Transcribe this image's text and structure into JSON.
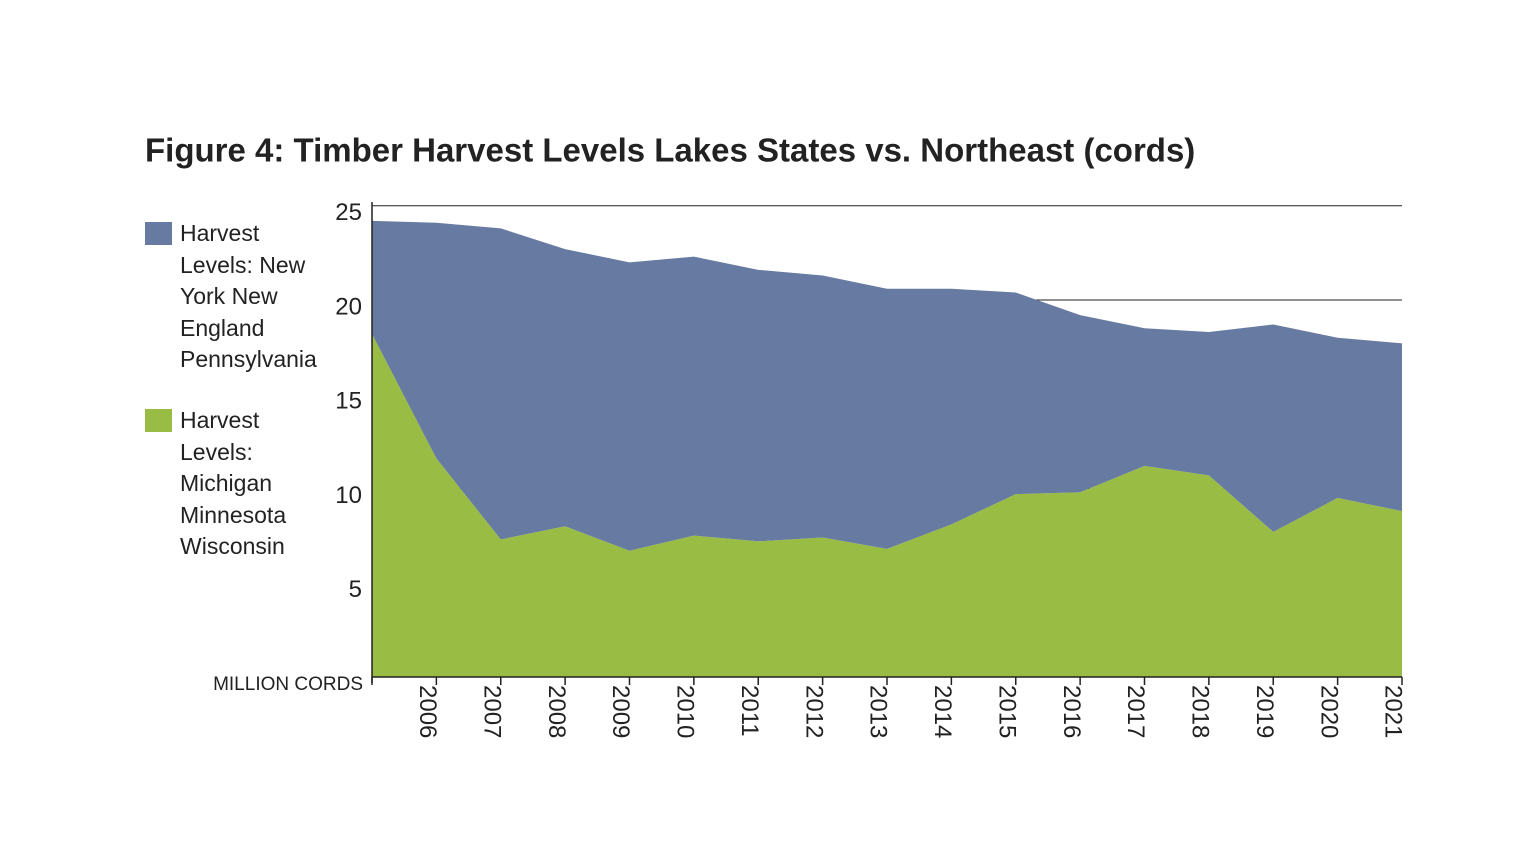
{
  "chart_data": {
    "type": "stacked_area",
    "title": "Figure 4: Timber Harvest Levels Lakes States vs. Northeast (cords)",
    "y_label": "MILLION CORDS",
    "categories": [
      null,
      "2006",
      "2007",
      "2008",
      "2009",
      "2010",
      "2011",
      "2012",
      "2013",
      "2014",
      "2015",
      "2016",
      "2017",
      "2018",
      "2019",
      "2020",
      "2021"
    ],
    "series": [
      {
        "name": "Harvest Levels: Michigan Minnesota Wisconsin",
        "color": "#99bc45",
        "values": [
          18.2,
          11.6,
          7.3,
          8.0,
          6.7,
          7.5,
          7.2,
          7.4,
          6.8,
          8.1,
          9.7,
          9.8,
          11.2,
          10.7,
          7.7,
          9.5,
          8.8
        ]
      },
      {
        "name": "Harvest Levels: New York New England Pennsylvania",
        "color": "#677aa1",
        "values": [
          6.0,
          12.5,
          16.5,
          14.7,
          15.3,
          14.8,
          14.4,
          13.9,
          13.8,
          12.5,
          10.7,
          9.4,
          7.3,
          7.6,
          11.0,
          8.5,
          8.9
        ]
      }
    ],
    "ylim": [
      0,
      25.2
    ],
    "yticks": [
      5,
      10,
      15,
      20,
      25
    ],
    "grid": true
  }
}
